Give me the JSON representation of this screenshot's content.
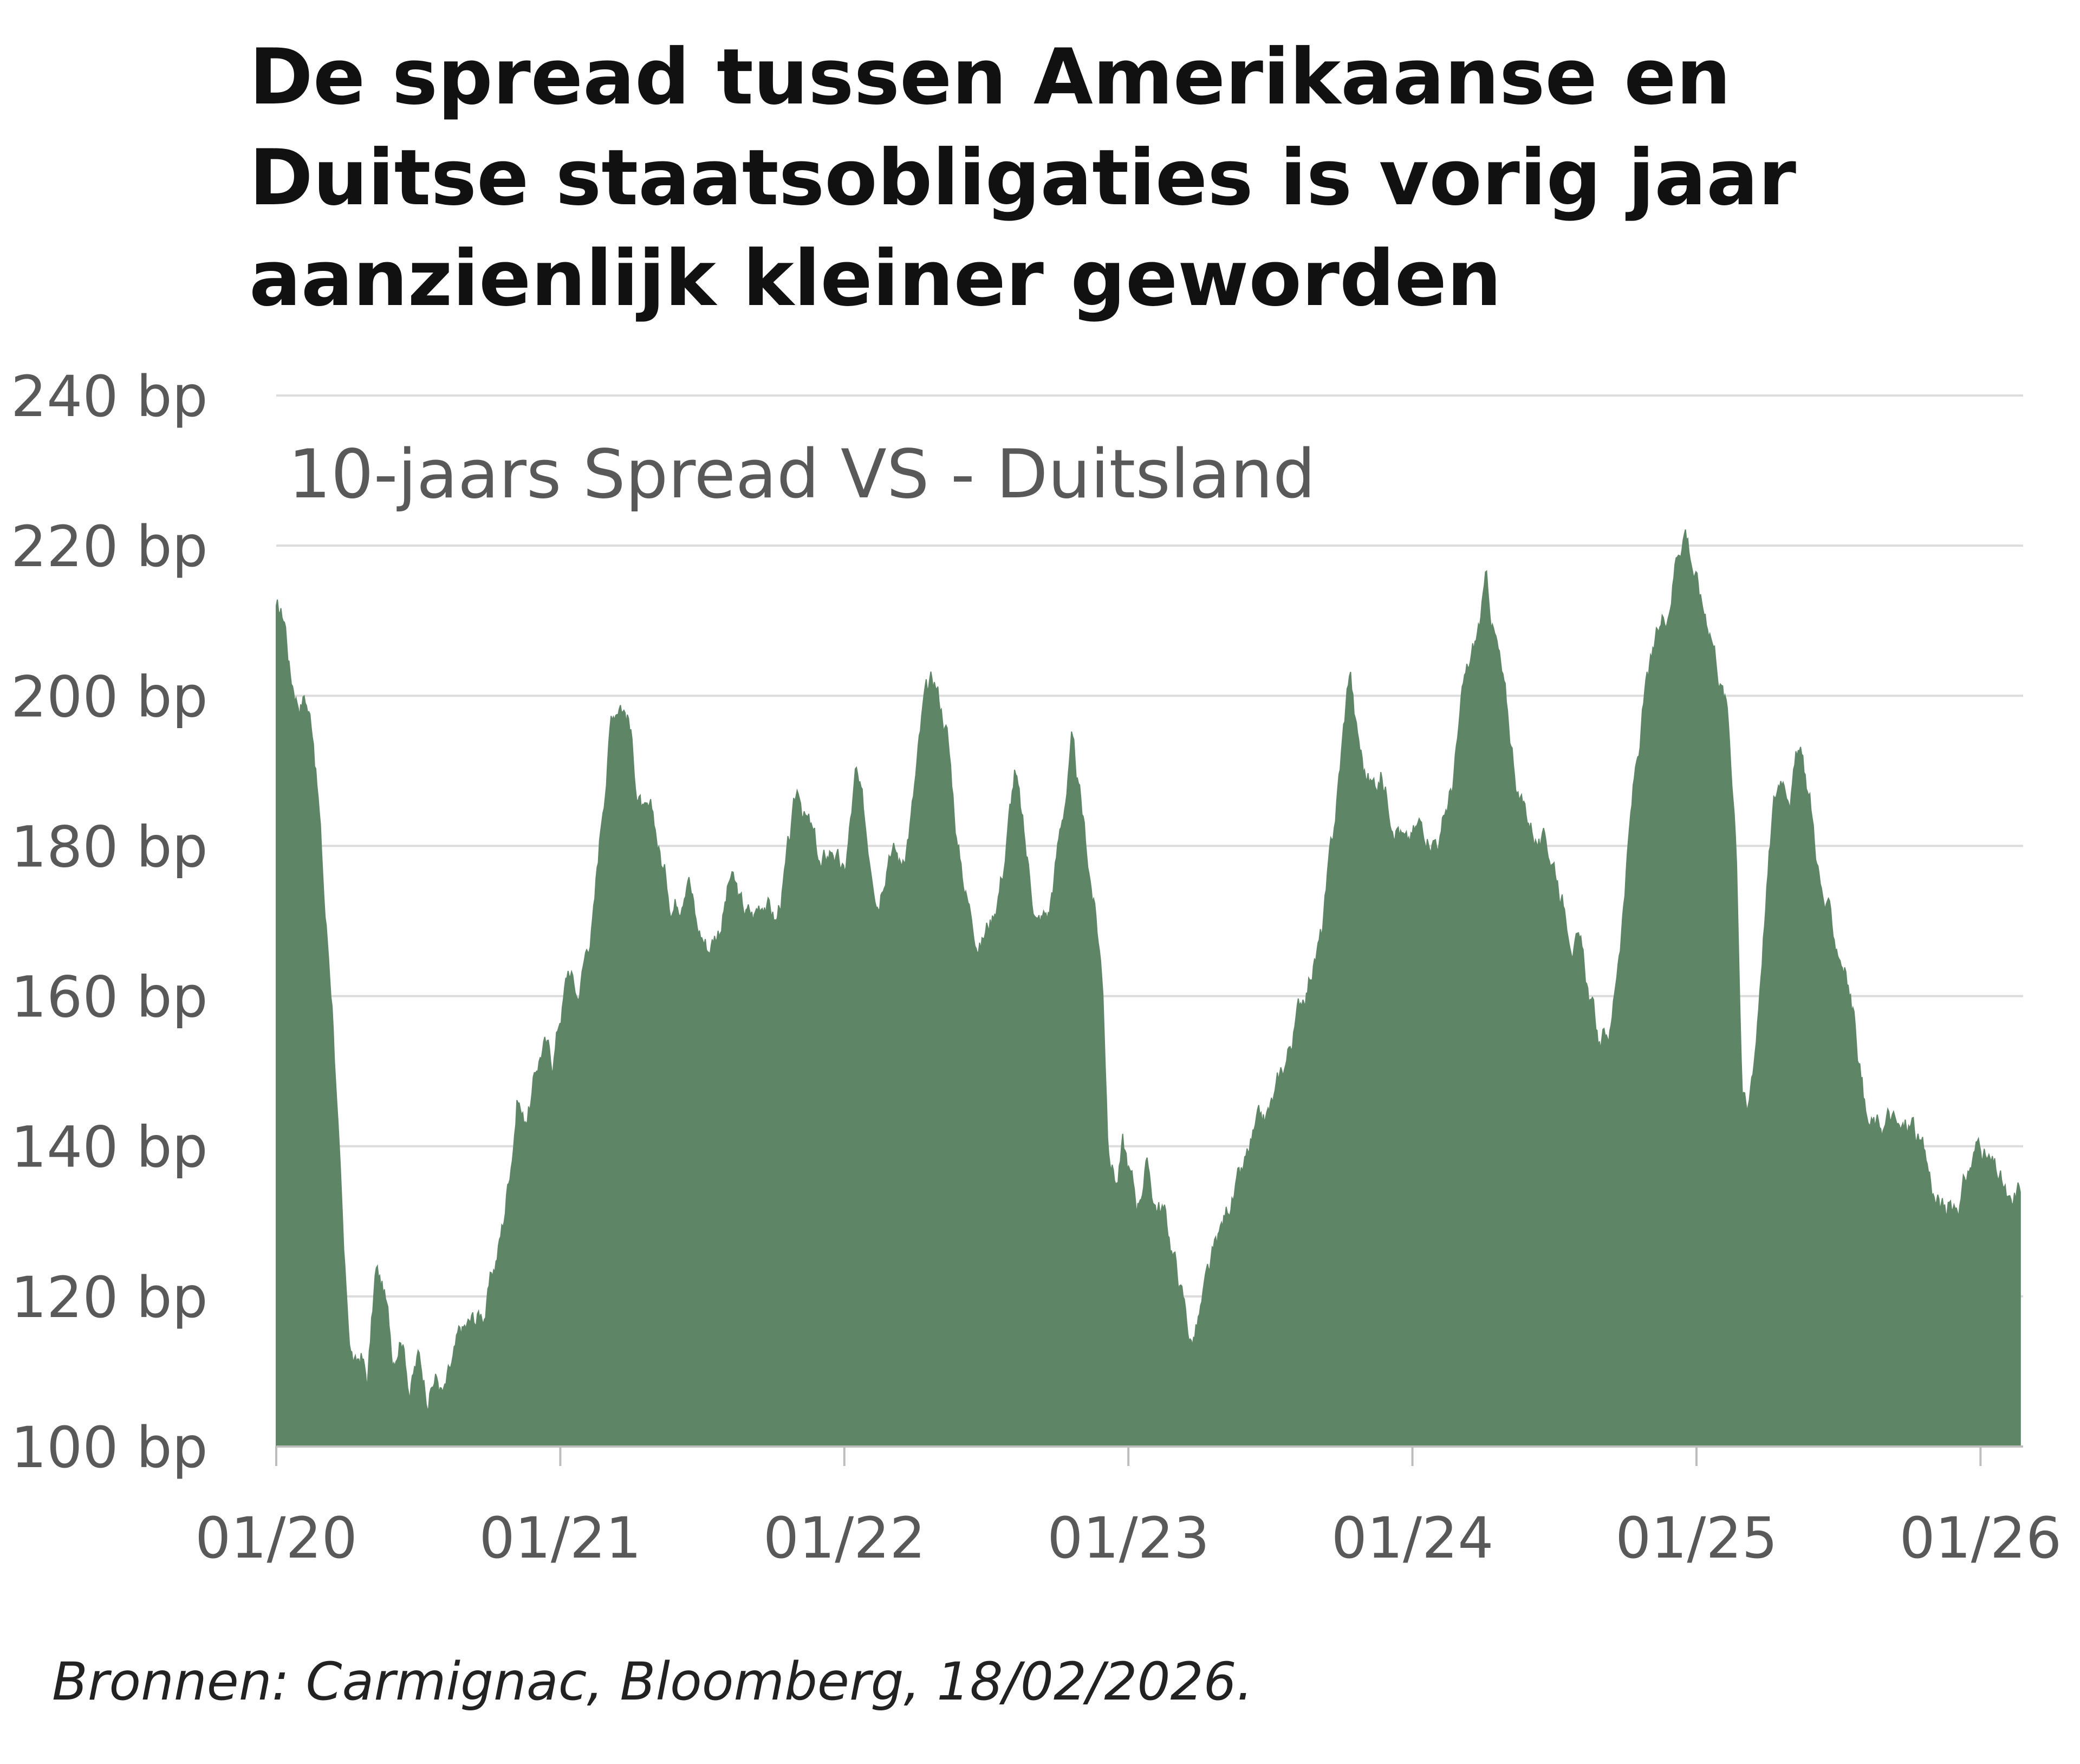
{
  "colors": {
    "area": "#5f8567",
    "grid": "#dcdcdc",
    "axis_text": "#595959",
    "title": "#111111"
  },
  "chart_data": {
    "type": "area",
    "title": "De spread tussen Amerikaanse en Duitse staatsobligaties is vorig jaar aanzienlijk kleiner geworden",
    "series_label": "10-jaars Spread VS - Duitsland",
    "source": "Bronnen: Carmignac, Bloomberg, 18/02/2026.",
    "ylim": [
      100,
      240
    ],
    "yticks": [
      100,
      120,
      140,
      160,
      180,
      200,
      220,
      240
    ],
    "ytick_labels": [
      "100 bp",
      "120 bp",
      "140 bp",
      "160 bp",
      "180 bp",
      "200 bp",
      "220 bp",
      "240 bp"
    ],
    "xlim": [
      2020.0,
      2026.15
    ],
    "xticks": [
      2020,
      2021,
      2022,
      2023,
      2024,
      2025,
      2026
    ],
    "xtick_labels": [
      "01/20",
      "01/21",
      "01/22",
      "01/23",
      "01/24",
      "01/25",
      "01/26"
    ],
    "x_unit": "decimal year",
    "y_unit": "bp",
    "points": [
      [
        2020.0,
        211
      ],
      [
        2020.03,
        210
      ],
      [
        2020.05,
        203
      ],
      [
        2020.08,
        200
      ],
      [
        2020.1,
        201
      ],
      [
        2020.13,
        196
      ],
      [
        2020.15,
        186
      ],
      [
        2020.17,
        172
      ],
      [
        2020.2,
        158
      ],
      [
        2020.22,
        140
      ],
      [
        2020.24,
        122
      ],
      [
        2020.26,
        113
      ],
      [
        2020.28,
        110
      ],
      [
        2020.3,
        112
      ],
      [
        2020.32,
        108
      ],
      [
        2020.35,
        123
      ],
      [
        2020.38,
        120
      ],
      [
        2020.41,
        112
      ],
      [
        2020.44,
        117
      ],
      [
        2020.47,
        109
      ],
      [
        2020.5,
        112
      ],
      [
        2020.53,
        108
      ],
      [
        2020.56,
        110
      ],
      [
        2020.59,
        107
      ],
      [
        2020.62,
        110
      ],
      [
        2020.65,
        114
      ],
      [
        2020.69,
        116
      ],
      [
        2020.73,
        118
      ],
      [
        2020.77,
        124
      ],
      [
        2020.8,
        130
      ],
      [
        2020.83,
        140
      ],
      [
        2020.85,
        148
      ],
      [
        2020.87,
        144
      ],
      [
        2020.9,
        147
      ],
      [
        2020.92,
        151
      ],
      [
        2020.94,
        154
      ],
      [
        2020.97,
        151
      ],
      [
        2021.0,
        158
      ],
      [
        2021.03,
        164
      ],
      [
        2021.06,
        160
      ],
      [
        2021.09,
        166
      ],
      [
        2021.12,
        172
      ],
      [
        2021.15,
        186
      ],
      [
        2021.18,
        198
      ],
      [
        2021.21,
        201
      ],
      [
        2021.24,
        198
      ],
      [
        2021.27,
        188
      ],
      [
        2021.3,
        183
      ],
      [
        2021.33,
        182
      ],
      [
        2021.36,
        177
      ],
      [
        2021.39,
        173
      ],
      [
        2021.42,
        174
      ],
      [
        2021.45,
        180
      ],
      [
        2021.48,
        170
      ],
      [
        2021.52,
        167
      ],
      [
        2021.56,
        170
      ],
      [
        2021.6,
        176
      ],
      [
        2021.64,
        171
      ],
      [
        2021.68,
        170
      ],
      [
        2021.72,
        174
      ],
      [
        2021.76,
        170
      ],
      [
        2021.8,
        178
      ],
      [
        2021.84,
        187
      ],
      [
        2021.88,
        182
      ],
      [
        2021.92,
        176
      ],
      [
        2021.96,
        180
      ],
      [
        2022.0,
        175
      ],
      [
        2022.04,
        189
      ],
      [
        2022.08,
        180
      ],
      [
        2022.12,
        175
      ],
      [
        2022.16,
        183
      ],
      [
        2022.2,
        178
      ],
      [
        2022.24,
        186
      ],
      [
        2022.28,
        198
      ],
      [
        2022.32,
        201
      ],
      [
        2022.36,
        196
      ],
      [
        2022.4,
        180
      ],
      [
        2022.44,
        172
      ],
      [
        2022.48,
        168
      ],
      [
        2022.52,
        171
      ],
      [
        2022.56,
        178
      ],
      [
        2022.6,
        190
      ],
      [
        2022.64,
        178
      ],
      [
        2022.68,
        170
      ],
      [
        2022.72,
        171
      ],
      [
        2022.76,
        182
      ],
      [
        2022.8,
        193
      ],
      [
        2022.84,
        182
      ],
      [
        2022.88,
        172
      ],
      [
        2022.91,
        162
      ],
      [
        2022.93,
        140
      ],
      [
        2022.96,
        136
      ],
      [
        2022.98,
        140
      ],
      [
        2023.0,
        137
      ],
      [
        2023.03,
        132
      ],
      [
        2023.06,
        138
      ],
      [
        2023.09,
        133
      ],
      [
        2023.12,
        132
      ],
      [
        2023.15,
        127
      ],
      [
        2023.18,
        122
      ],
      [
        2023.22,
        114
      ],
      [
        2023.24,
        116
      ],
      [
        2023.27,
        120
      ],
      [
        2023.3,
        124
      ],
      [
        2023.33,
        128
      ],
      [
        2023.36,
        133
      ],
      [
        2023.4,
        135
      ],
      [
        2023.44,
        140
      ],
      [
        2023.48,
        142
      ],
      [
        2023.52,
        146
      ],
      [
        2023.56,
        152
      ],
      [
        2023.6,
        158
      ],
      [
        2023.64,
        164
      ],
      [
        2023.68,
        168
      ],
      [
        2023.72,
        180
      ],
      [
        2023.76,
        196
      ],
      [
        2023.78,
        204
      ],
      [
        2023.8,
        196
      ],
      [
        2023.83,
        190
      ],
      [
        2023.86,
        188
      ],
      [
        2023.89,
        190
      ],
      [
        2023.92,
        186
      ],
      [
        2023.95,
        185
      ],
      [
        2023.98,
        180
      ],
      [
        2024.02,
        182
      ],
      [
        2024.06,
        183
      ],
      [
        2024.1,
        182
      ],
      [
        2024.14,
        188
      ],
      [
        2024.18,
        200
      ],
      [
        2024.22,
        206
      ],
      [
        2024.26,
        214
      ],
      [
        2024.3,
        206
      ],
      [
        2024.34,
        195
      ],
      [
        2024.38,
        186
      ],
      [
        2024.42,
        183
      ],
      [
        2024.46,
        180
      ],
      [
        2024.5,
        178
      ],
      [
        2024.54,
        172
      ],
      [
        2024.58,
        168
      ],
      [
        2024.62,
        160
      ],
      [
        2024.66,
        153
      ],
      [
        2024.7,
        156
      ],
      [
        2024.74,
        172
      ],
      [
        2024.78,
        188
      ],
      [
        2024.82,
        200
      ],
      [
        2024.86,
        206
      ],
      [
        2024.9,
        212
      ],
      [
        2024.93,
        220
      ],
      [
        2024.96,
        224
      ],
      [
        2024.99,
        218
      ],
      [
        2025.02,
        212
      ],
      [
        2025.05,
        210
      ],
      [
        2025.08,
        204
      ],
      [
        2025.11,
        198
      ],
      [
        2025.14,
        182
      ],
      [
        2025.16,
        150
      ],
      [
        2025.18,
        144
      ],
      [
        2025.21,
        155
      ],
      [
        2025.24,
        172
      ],
      [
        2025.27,
        185
      ],
      [
        2025.3,
        190
      ],
      [
        2025.33,
        189
      ],
      [
        2025.36,
        193
      ],
      [
        2025.4,
        186
      ],
      [
        2025.44,
        174
      ],
      [
        2025.48,
        168
      ],
      [
        2025.52,
        165
      ],
      [
        2025.56,
        156
      ],
      [
        2025.6,
        143
      ],
      [
        2025.64,
        142
      ],
      [
        2025.68,
        144
      ],
      [
        2025.72,
        141
      ],
      [
        2025.76,
        143
      ],
      [
        2025.8,
        138
      ],
      [
        2025.84,
        133
      ],
      [
        2025.88,
        131
      ],
      [
        2025.92,
        133
      ],
      [
        2025.96,
        137
      ],
      [
        2026.0,
        141
      ],
      [
        2026.04,
        137
      ],
      [
        2026.08,
        134
      ],
      [
        2026.11,
        130
      ],
      [
        2026.14,
        134
      ]
    ]
  }
}
